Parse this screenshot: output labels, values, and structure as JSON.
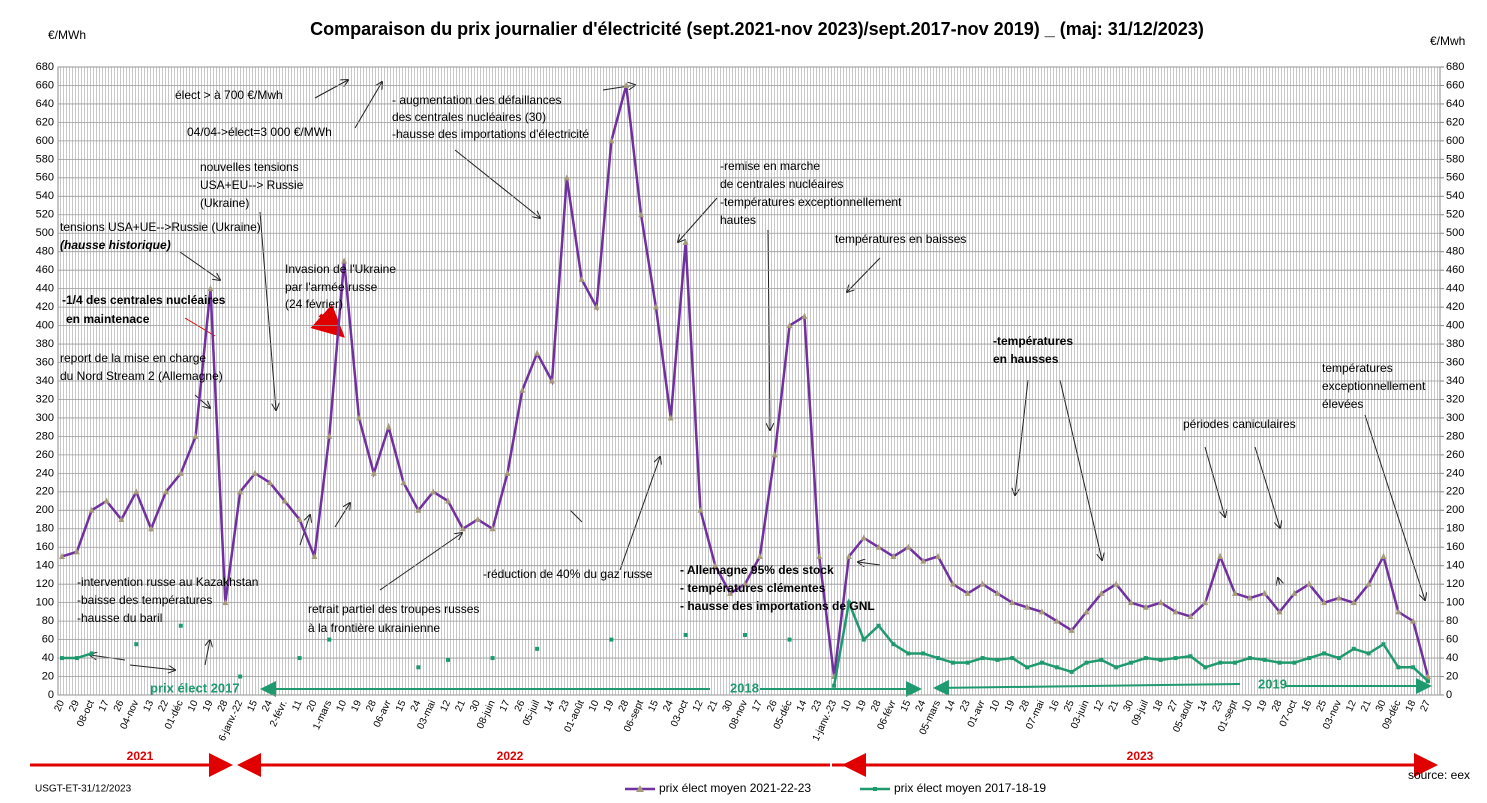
{
  "chart_data": {
    "type": "line",
    "title": "Comparaison du prix journalier d'électricité (sept.2021-nov 2023)/sept.2017-nov 2019) _ (maj: 31/12/2023)",
    "y_label": "€/MWh",
    "y2_label": "€/Mwh",
    "categories": [
      "20",
      "29",
      "08-oct",
      "17",
      "26",
      "04-nov",
      "13",
      "22",
      "01-déc",
      "10",
      "19",
      "28",
      "6-janv.-22",
      "15",
      "24",
      "2-févr.",
      "11",
      "20",
      "1-mars",
      "10",
      "19",
      "28",
      "06-avr",
      "15",
      "24",
      "03-mai",
      "12",
      "21",
      "30",
      "08-juin",
      "17",
      "26",
      "05-juil",
      "14",
      "23",
      "01-août",
      "10",
      "19",
      "28",
      "06-sept",
      "15",
      "24",
      "03-oct",
      "12",
      "21",
      "30",
      "08-nov",
      "17",
      "26",
      "05-déc",
      "14",
      "23",
      "1-janv.-23",
      "10",
      "19",
      "28",
      "06-févr",
      "15",
      "24",
      "05-mars",
      "14",
      "23",
      "01-avr",
      "10",
      "19",
      "28",
      "07-mai",
      "16",
      "25",
      "03-juin",
      "12",
      "21",
      "30",
      "09-juil",
      "18",
      "27",
      "05-août",
      "14",
      "23",
      "01-sept",
      "10",
      "19",
      "28",
      "07-oct",
      "16",
      "25",
      "03-nov",
      "12",
      "21",
      "30",
      "09-déc",
      "18",
      "27"
    ],
    "series": [
      {
        "name": "prix élect moyen 2021-22-23",
        "color": "#7030a0",
        "values": [
          150,
          155,
          200,
          210,
          190,
          220,
          180,
          220,
          240,
          280,
          440,
          100,
          220,
          240,
          230,
          210,
          190,
          150,
          280,
          470,
          300,
          240,
          290,
          230,
          200,
          220,
          210,
          180,
          190,
          180,
          240,
          330,
          370,
          340,
          560,
          450,
          420,
          600,
          660,
          520,
          420,
          300,
          490,
          200,
          140,
          110,
          120,
          150,
          260,
          400,
          410,
          150,
          20,
          150,
          170,
          160,
          150,
          160,
          145,
          150,
          120,
          110,
          120,
          110,
          100,
          95,
          90,
          80,
          70,
          90,
          110,
          120,
          100,
          95,
          100,
          90,
          85,
          100,
          150,
          110,
          105,
          110,
          90,
          110,
          120,
          100,
          105,
          100,
          120,
          150,
          90,
          80,
          20
        ]
      },
      {
        "name": "prix élect moyen 2017-18-19",
        "color": "#1f9a6e",
        "values": [
          40,
          40,
          45,
          null,
          null,
          55,
          null,
          null,
          75,
          null,
          null,
          null,
          20,
          null,
          null,
          null,
          40,
          null,
          60,
          null,
          null,
          null,
          null,
          null,
          30,
          null,
          38,
          null,
          null,
          40,
          null,
          null,
          50,
          null,
          null,
          null,
          null,
          60,
          null,
          null,
          null,
          null,
          65,
          null,
          null,
          null,
          65,
          null,
          null,
          60,
          null,
          null,
          10,
          100,
          60,
          75,
          55,
          45,
          45,
          40,
          35,
          35,
          40,
          38,
          40,
          30,
          35,
          30,
          25,
          35,
          38,
          30,
          35,
          40,
          38,
          40,
          42,
          30,
          35,
          35,
          40,
          38,
          35,
          35,
          40,
          45,
          40,
          50,
          45,
          55,
          30,
          30,
          15
        ]
      }
    ],
    "ylim": [
      0,
      680
    ],
    "yticks": [
      0,
      20,
      40,
      60,
      80,
      100,
      120,
      140,
      160,
      180,
      200,
      220,
      240,
      260,
      280,
      300,
      320,
      340,
      360,
      380,
      400,
      420,
      440,
      460,
      480,
      500,
      520,
      540,
      560,
      580,
      600,
      620,
      640,
      660,
      680
    ],
    "y2lim": [
      0,
      680
    ],
    "y2ticks": [
      0,
      20,
      40,
      60,
      80,
      100,
      120,
      140,
      160,
      180,
      200,
      220,
      240,
      260,
      280,
      300,
      320,
      340,
      360,
      380,
      400,
      420,
      440,
      460,
      480,
      500,
      520,
      540,
      560,
      580,
      600,
      620,
      640,
      660,
      680
    ],
    "grid": true,
    "legend": "bottom",
    "annotations": [
      "élect > à 700  €/Mwh",
      "04/04->élect=3 000 €/MWh",
      "nouvelles tensions",
      "USA+EU--> Russie",
      "(Ukraine)",
      "tensions USA+UE-->Russie (Ukraine)",
      "(hausse historique)",
      "Invasion de l'Ukraine",
      "par l'armée russe",
      "(24 février)",
      "-1/4 des centrales nucléaires",
      "en maintenace",
      "report de la mise en charge",
      "du Nord Stream 2 (Allemagne)",
      "- augmentation des défaillances",
      "des centrales nucléaires (30)",
      "-hausse des importations d'électricité",
      "-remise en marche",
      "de centrales nucléaires",
      "-températures exceptionnellement",
      "hautes",
      "températures en baisses",
      "-températures",
      "en hausses",
      "températures",
      "exceptionnellement",
      "élevées",
      "périodes caniculaires",
      "-intervention russe au Kazakhstan",
      "-baisse des températures",
      "-hausse du baril",
      "retrait partiel des troupes russes",
      "à la frontière ukrainienne",
      "-réduction de 40% du gaz russe",
      "- Allemagne 95% des stock",
      "- températures clémentes",
      "- hausse des importations de GNL"
    ],
    "year_labels": [
      "2021",
      "2022",
      "2023"
    ],
    "reference_labels": [
      "prix élect 2017",
      "2018",
      "2019"
    ],
    "author": "USGT-ET-31/12/2023",
    "source": "source: eex"
  }
}
